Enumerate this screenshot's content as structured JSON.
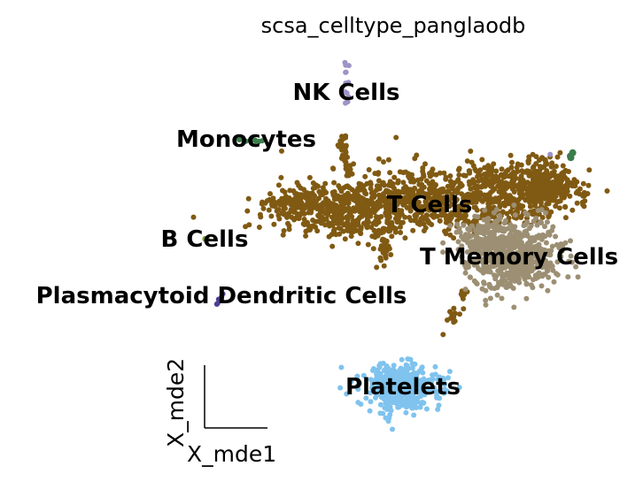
{
  "chart_data": {
    "type": "scatter",
    "title": "scsa_celltype_panglaodb",
    "xlabel": "X_mde1",
    "ylabel": "X_mde2",
    "grid": false,
    "legend": "on data",
    "clusters": [
      {
        "name": "NK Cells",
        "color": "#9f93c7"
      },
      {
        "name": "Monocytes",
        "color": "#3b7d4c"
      },
      {
        "name": "T Cells",
        "color": "#805a13"
      },
      {
        "name": "B Cells",
        "color": "#7e9f3f"
      },
      {
        "name": "T Memory Cells",
        "color": "#9c8f73"
      },
      {
        "name": "Plasmacytoid Dendritic Cells",
        "color": "#4b3f94"
      },
      {
        "name": "Platelets",
        "color": "#7fc3ee"
      }
    ]
  }
}
